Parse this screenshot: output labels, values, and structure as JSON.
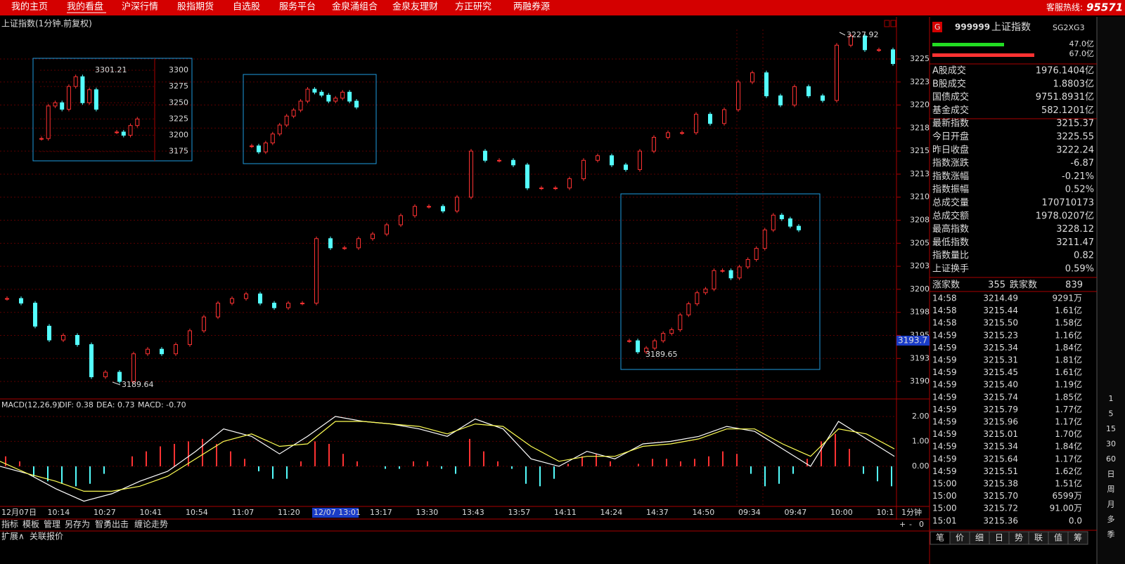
{
  "menu": {
    "items": [
      "我的主页",
      "我的看盘",
      "沪深行情",
      "股指期货",
      "自选股",
      "服务平台",
      "金泉涌组合",
      "金泉友理财",
      "方正研究",
      "两融券源"
    ],
    "hotline_label": "客服热线:",
    "hotline": "95571"
  },
  "main_chart": {
    "title": "上证指数(1分钟.前复权)",
    "ylim": [
      3188.1,
      3228.2
    ],
    "yticks": [
      3225,
      {
        "value": 3222.5,
        "label": "3223"
      },
      3220,
      {
        "value": 3217.5,
        "label": "3218"
      },
      3215,
      {
        "value": 3212.5,
        "label": "3213"
      },
      3210,
      {
        "value": 3207.5,
        "label": "3208"
      },
      3205,
      {
        "value": 3202.5,
        "label": "3203"
      },
      3200,
      {
        "value": 3197.5,
        "label": "3198"
      },
      3195,
      {
        "value": 3192.5,
        "label": "3193"
      },
      3190
    ],
    "closes": [
      3199,
      3198.5,
      3196,
      3194.5,
      3195,
      3194,
      3190.5,
      3191,
      3190,
      3193,
      3193.5,
      3193,
      3194,
      3195.5,
      3197,
      3198.5,
      3199,
      3199.5,
      3198.5,
      3198,
      3198.5,
      3198.5,
      3205.5,
      3204.5,
      3204.5,
      3205.5,
      3206,
      3207,
      3208,
      3209,
      3209,
      3208.5,
      3210,
      3215,
      3214,
      3214,
      3213.5,
      3211,
      3211,
      3211,
      3212,
      3214,
      3214.5,
      3213.5,
      3213,
      3215,
      3216.5,
      3217,
      3217,
      3219,
      3218,
      3219.5,
      3222.5,
      3223.5,
      3221,
      3220,
      3222,
      3221,
      3220.5,
      3226.5,
      3227.5,
      3226,
      3226,
      3224.5
    ],
    "high_label": "3227.92",
    "low_label": "3189.64",
    "current_label": "3193.7",
    "x_labels": [
      "12月07日",
      "10:14",
      "10:27",
      "10:41",
      "10:54",
      "11:07",
      "11:20",
      "13:17",
      "13:30",
      "13:43",
      "13:57",
      "14:11",
      "14:24",
      "14:37",
      "14:50",
      "09:34",
      "09:47",
      "10:00",
      "10:1"
    ],
    "cursor_label": "12/07 13:01",
    "period_label": "1分钟",
    "up_color": "#ff3232",
    "down_color": "#54ffff"
  },
  "insets": [
    {
      "ylim": [
        3165,
        3314
      ],
      "yticks": [
        3300,
        3275,
        3250,
        3225,
        3200,
        3175
      ],
      "closes": [
        3195,
        3245,
        3250,
        3240,
        3275,
        3290,
        3250,
        3270,
        3240,
        null,
        null,
        3205,
        3200,
        3215,
        3225
      ],
      "label": "3301.21"
    },
    {
      "ylim": [
        3170,
        3310
      ],
      "closes": [
        3195,
        3185,
        3200,
        3215,
        3230,
        3245,
        3255,
        3270,
        3290,
        3285,
        3280,
        3270,
        3275,
        3285,
        3270,
        3260
      ]
    },
    {
      "ylim": [
        3186,
        3232
      ],
      "closes": [
        3193,
        3190,
        3191,
        3193,
        3195,
        3196,
        3200,
        3203,
        3206,
        3207,
        3212,
        3212,
        3210,
        3213,
        3215,
        3218,
        3223,
        3227,
        3226,
        3224,
        3223
      ],
      "label": "3189.65"
    }
  ],
  "macd": {
    "name": "MACD(12,26,9)",
    "dif_label": "DIF: 0.38",
    "dea_label": "DEA: 0.73",
    "macd_label": "MACD: -0.70",
    "ylim": [
      -1.58,
      2.59
    ],
    "yticks": [
      {
        "value": 2,
        "label": "2.00"
      },
      {
        "value": 1,
        "label": "1.00"
      },
      {
        "value": 0,
        "label": "0.00"
      }
    ],
    "dif": [
      0,
      -0.3,
      -0.9,
      -1.4,
      -1.1,
      -0.6,
      -0.2,
      0.6,
      1.5,
      1.2,
      0.5,
      1.2,
      2.0,
      1.8,
      1.7,
      1.5,
      1.2,
      1.9,
      1.5,
      0.3,
      0.0,
      0.6,
      0.3,
      0.9,
      1.0,
      1.2,
      1.6,
      1.4,
      0.7,
      0.0,
      1.8,
      1.1,
      0.4
    ],
    "dea": [
      0.2,
      -0.3,
      -0.6,
      -1.0,
      -1.0,
      -0.8,
      -0.4,
      0.3,
      1.0,
      1.3,
      0.8,
      0.9,
      1.8,
      1.8,
      1.7,
      1.6,
      1.3,
      1.7,
      1.6,
      0.8,
      0.2,
      0.4,
      0.4,
      0.8,
      0.9,
      1.1,
      1.5,
      1.5,
      0.9,
      0.4,
      1.5,
      1.3,
      0.7
    ],
    "hist": [
      0.4,
      0.2,
      -0.4,
      -0.6,
      -0.7,
      -0.8,
      -0.7,
      -0.3,
      0,
      0.4,
      0.6,
      0.8,
      0.9,
      1.0,
      1.1,
      0.9,
      0.6,
      0.3,
      -0.2,
      -0.5,
      -0.5,
      0.2,
      1.0,
      0.9,
      0.5,
      0.2,
      0,
      -0.1,
      -0.1,
      0.2,
      0.2,
      -0.1,
      -0.3,
      1.1,
      0.6,
      0.2,
      -0.1,
      -0.7,
      -0.8,
      -0.5,
      0.1,
      0.4,
      0.5,
      0.2,
      0,
      0.1,
      0.3,
      0.3,
      0.2,
      0.3,
      0.4,
      0.6,
      0.5,
      -0.3,
      -0.8,
      -0.7,
      -0.3,
      0.3,
      1.0,
      1.3,
      0.7,
      -0.3,
      -0.6,
      -0.8
    ]
  },
  "toolbar": {
    "items": [
      "指标",
      "模板",
      "管理",
      "另存为",
      "智勇出击",
      "缠论走势"
    ],
    "bottom": [
      "扩展∧",
      "关联报价"
    ],
    "controls": [
      "+",
      "-",
      "0"
    ]
  },
  "quote": {
    "badge": "G",
    "code": "999999",
    "name": "上证指数",
    "tag": "SG2XG3",
    "bar_labels": [
      "47.0亿",
      "67.0亿"
    ],
    "rows": [
      {
        "label": "A股成交",
        "value": "1976.1404亿",
        "color": "#ffff54"
      },
      {
        "label": "B股成交",
        "value": "1.8803亿",
        "color": "#ffff54"
      },
      {
        "label": "国债成交",
        "value": "9751.8931亿",
        "color": "#ffff54"
      },
      {
        "label": "基金成交",
        "value": "582.1201亿",
        "color": "#ffff54"
      },
      {
        "label": "最新指数",
        "value": "3215.37",
        "color": "#33ff33"
      },
      {
        "label": "今日开盘",
        "value": "3225.55",
        "color": "#ff3232"
      },
      {
        "label": "昨日收盘",
        "value": "3222.24",
        "color": "#ffffff"
      },
      {
        "label": "指数涨跌",
        "value": "-6.87",
        "color": "#33ff33"
      },
      {
        "label": "指数涨幅",
        "value": "-0.21%",
        "color": "#33ff33"
      },
      {
        "label": "指数振幅",
        "value": "0.52%",
        "color": "#ffffff"
      },
      {
        "label": "总成交量",
        "value": "170710173",
        "color": "#ffff54"
      },
      {
        "label": "总成交额",
        "value": "1978.0207亿",
        "color": "#ffff54"
      },
      {
        "label": "最高指数",
        "value": "3228.12",
        "color": "#ff3232"
      },
      {
        "label": "最低指数",
        "value": "3211.47",
        "color": "#33ff33"
      },
      {
        "label": "指数量比",
        "value": "0.82",
        "color": "#ffff54"
      },
      {
        "label": "上证换手",
        "value": "0.59%",
        "color": "#ffffff"
      }
    ],
    "up_label": "涨家数",
    "up_count": "355",
    "down_label": "跌家数",
    "down_count": "839",
    "ticks": [
      [
        "14:58",
        "3214.49",
        "9291万"
      ],
      [
        "14:58",
        "3215.44",
        "1.61亿"
      ],
      [
        "14:58",
        "3215.50",
        "1.58亿"
      ],
      [
        "14:59",
        "3215.23",
        "1.16亿"
      ],
      [
        "14:59",
        "3215.34",
        "1.84亿"
      ],
      [
        "14:59",
        "3215.31",
        "1.81亿"
      ],
      [
        "14:59",
        "3215.45",
        "1.61亿"
      ],
      [
        "14:59",
        "3215.40",
        "1.19亿"
      ],
      [
        "14:59",
        "3215.74",
        "1.85亿"
      ],
      [
        "14:59",
        "3215.79",
        "1.77亿"
      ],
      [
        "14:59",
        "3215.96",
        "1.17亿"
      ],
      [
        "14:59",
        "3215.01",
        "1.70亿"
      ],
      [
        "14:59",
        "3215.34",
        "1.84亿"
      ],
      [
        "14:59",
        "3215.64",
        "1.17亿"
      ],
      [
        "14:59",
        "3215.51",
        "1.62亿"
      ],
      [
        "15:00",
        "3215.38",
        "1.51亿"
      ],
      [
        "15:00",
        "3215.70",
        "6599万"
      ],
      [
        "15:00",
        "3215.72",
        "91.00万"
      ],
      [
        "15:01",
        "3215.36",
        "0.0"
      ]
    ],
    "tabs": [
      "笔",
      "价",
      "细",
      "日",
      "势",
      "联",
      "值",
      "筹"
    ]
  },
  "side_periods": [
    "1",
    "5",
    "15",
    "30",
    "60",
    "日",
    "周",
    "月",
    "多",
    "季"
  ]
}
